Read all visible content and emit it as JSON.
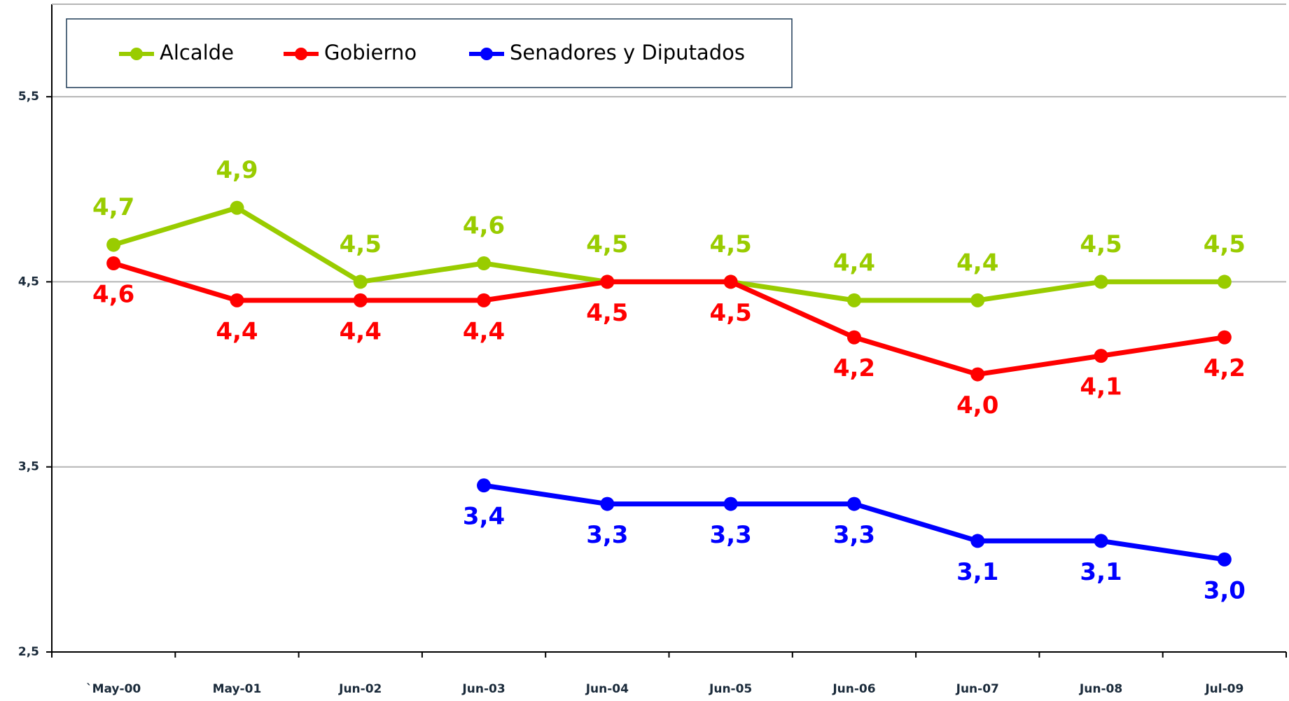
{
  "chart_data": {
    "type": "line",
    "categories": [
      "`May-00",
      "May-01",
      "Jun-02",
      "Jun-03",
      "Jun-04",
      "Jun-05",
      "Jun-06",
      "Jun-07",
      "Jun-08",
      "Jul-09"
    ],
    "series": [
      {
        "name": "Alcalde",
        "color": "#99cc00",
        "values": [
          4.7,
          4.9,
          4.5,
          4.6,
          4.5,
          4.5,
          4.4,
          4.4,
          4.5,
          4.5
        ],
        "value_labels": [
          "4,7",
          "4,9",
          "4,5",
          "4,6",
          "4,5",
          "4,5",
          "4,4",
          "4,4",
          "4,5",
          "4,5"
        ]
      },
      {
        "name": "Gobierno",
        "color": "#ff0000",
        "values": [
          4.6,
          4.4,
          4.4,
          4.4,
          4.5,
          4.5,
          4.2,
          4.0,
          4.1,
          4.2
        ],
        "value_labels": [
          "4,6",
          "4,4",
          "4,4",
          "4,4",
          "4,5",
          "4,5",
          "4,2",
          "4,0",
          "4,1",
          "4,2"
        ]
      },
      {
        "name": "Senadores y Diputados",
        "color": "#0000ff",
        "values": [
          null,
          null,
          null,
          3.4,
          3.3,
          3.3,
          3.3,
          3.1,
          3.1,
          3.0
        ],
        "value_labels": [
          null,
          null,
          null,
          "3,4",
          "3,3",
          "3,3",
          "3,3",
          "3,1",
          "3,1",
          "3,0"
        ]
      }
    ],
    "ylim": [
      2.5,
      6.0
    ],
    "yticks": [
      {
        "value": 2.5,
        "label": "2,5"
      },
      {
        "value": 3.5,
        "label": "3,5"
      },
      {
        "value": 4.5,
        "label": "4,5"
      },
      {
        "value": 5.5,
        "label": "5,5"
      }
    ],
    "grid": true,
    "legend": "top"
  }
}
